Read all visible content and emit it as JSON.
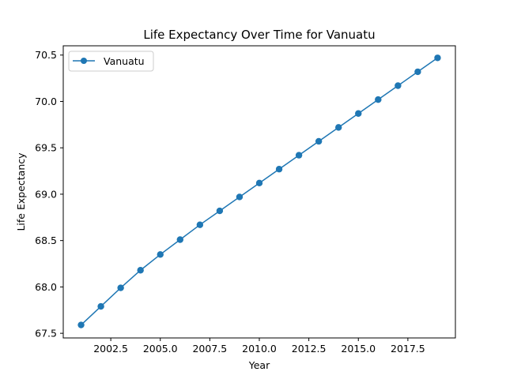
{
  "chart_data": {
    "type": "line",
    "title": "Life Expectancy Over Time for Vanuatu",
    "xlabel": "Year",
    "ylabel": "Life Expectancy",
    "xlim": [
      2000.1,
      2019.9
    ],
    "ylim": [
      67.45,
      70.6
    ],
    "xticks": [
      2002.5,
      2005.0,
      2007.5,
      2010.0,
      2012.5,
      2015.0,
      2017.5
    ],
    "xtick_labels": [
      "2002.5",
      "2005.0",
      "2007.5",
      "2010.0",
      "2012.5",
      "2015.0",
      "2017.5"
    ],
    "yticks": [
      67.5,
      68.0,
      68.5,
      69.0,
      69.5,
      70.0,
      70.5
    ],
    "ytick_labels": [
      "67.5",
      "68.0",
      "68.5",
      "69.0",
      "69.5",
      "70.0",
      "70.5"
    ],
    "grid": false,
    "legend_position": "top-left",
    "series": [
      {
        "name": "Vanuatu",
        "color": "#1f77b4",
        "marker": "circle",
        "x": [
          2001,
          2002,
          2003,
          2004,
          2005,
          2006,
          2007,
          2008,
          2009,
          2010,
          2011,
          2012,
          2013,
          2014,
          2015,
          2016,
          2017,
          2018,
          2019
        ],
        "y": [
          67.59,
          67.79,
          67.99,
          68.18,
          68.35,
          68.51,
          68.67,
          68.82,
          68.97,
          69.12,
          69.27,
          69.42,
          69.57,
          69.72,
          69.87,
          70.02,
          70.17,
          70.32,
          70.47
        ]
      }
    ]
  }
}
